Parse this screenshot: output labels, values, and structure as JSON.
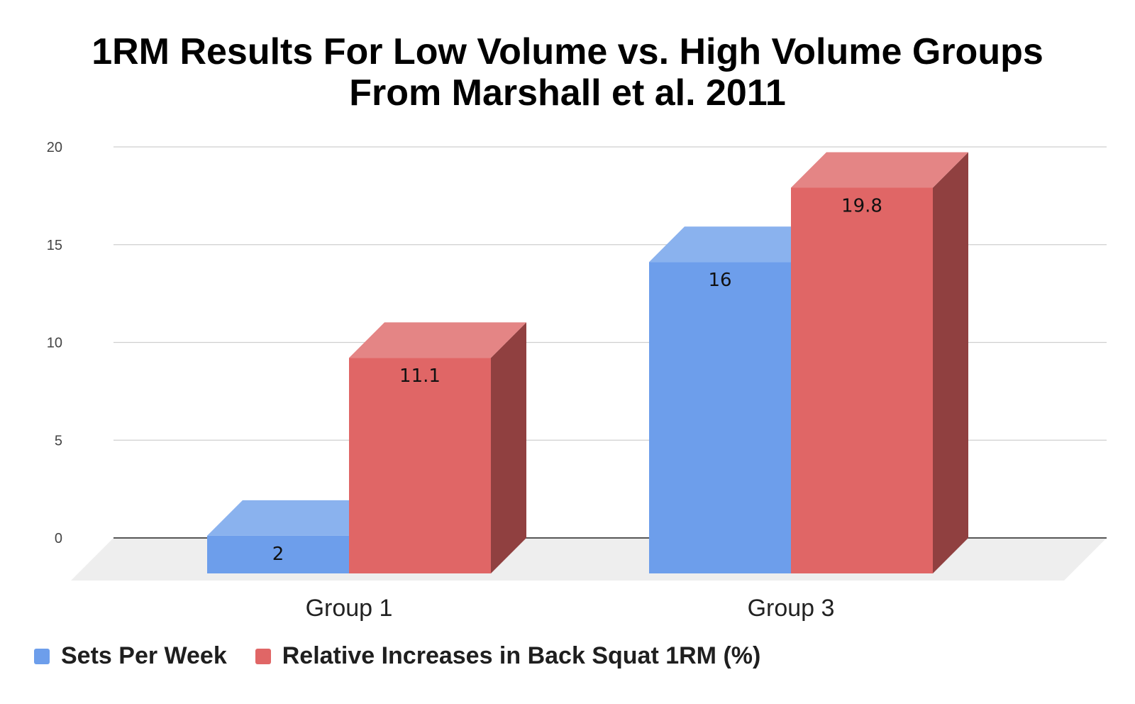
{
  "chart_data": {
    "type": "bar",
    "title": [
      "1RM Results For Low Volume vs. High Volume Groups",
      "From Marshall et al. 2011"
    ],
    "categories": [
      "Group 1",
      "Group 3"
    ],
    "series": [
      {
        "name": "Sets Per Week",
        "values": [
          2,
          16
        ],
        "labels": [
          "2",
          "16"
        ],
        "color": "#6d9eeb",
        "top_color": "#8ab2ee",
        "side_color": "#3d6db3"
      },
      {
        "name": "Relative Increases in Back Squat 1RM (%)",
        "values": [
          11.1,
          19.8
        ],
        "labels": [
          "11.1",
          "19.8"
        ],
        "color": "#e06666",
        "top_color": "#e48585",
        "side_color": "#904040"
      }
    ],
    "ylim": [
      0,
      20
    ],
    "yticks": [
      0,
      5,
      10,
      15,
      20
    ],
    "ytick_labels": [
      "0",
      "5",
      "10",
      "15",
      "20"
    ],
    "grid": true,
    "legend": "bottom-left",
    "xlabel": "",
    "ylabel": ""
  }
}
